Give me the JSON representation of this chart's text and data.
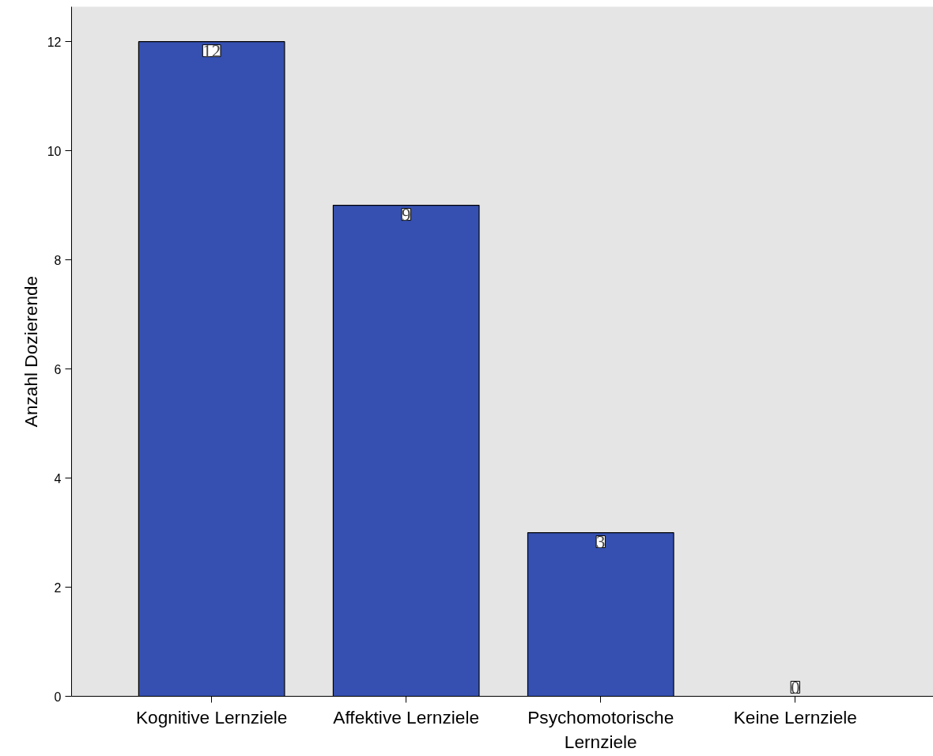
{
  "chart_data": {
    "type": "bar",
    "ylabel": "Anzahl Dozierende",
    "categories": [
      "Kognitive Lernziele",
      "Affektive Lernziele",
      "Psychomotorische Lernziele",
      "Keine Lernziele"
    ],
    "values": [
      12,
      9,
      3,
      0
    ],
    "color": "#3550b0",
    "ylim": [
      0,
      12.64
    ],
    "yticks": [
      0,
      2,
      4,
      6,
      8,
      10,
      12
    ],
    "data_labels": true
  }
}
